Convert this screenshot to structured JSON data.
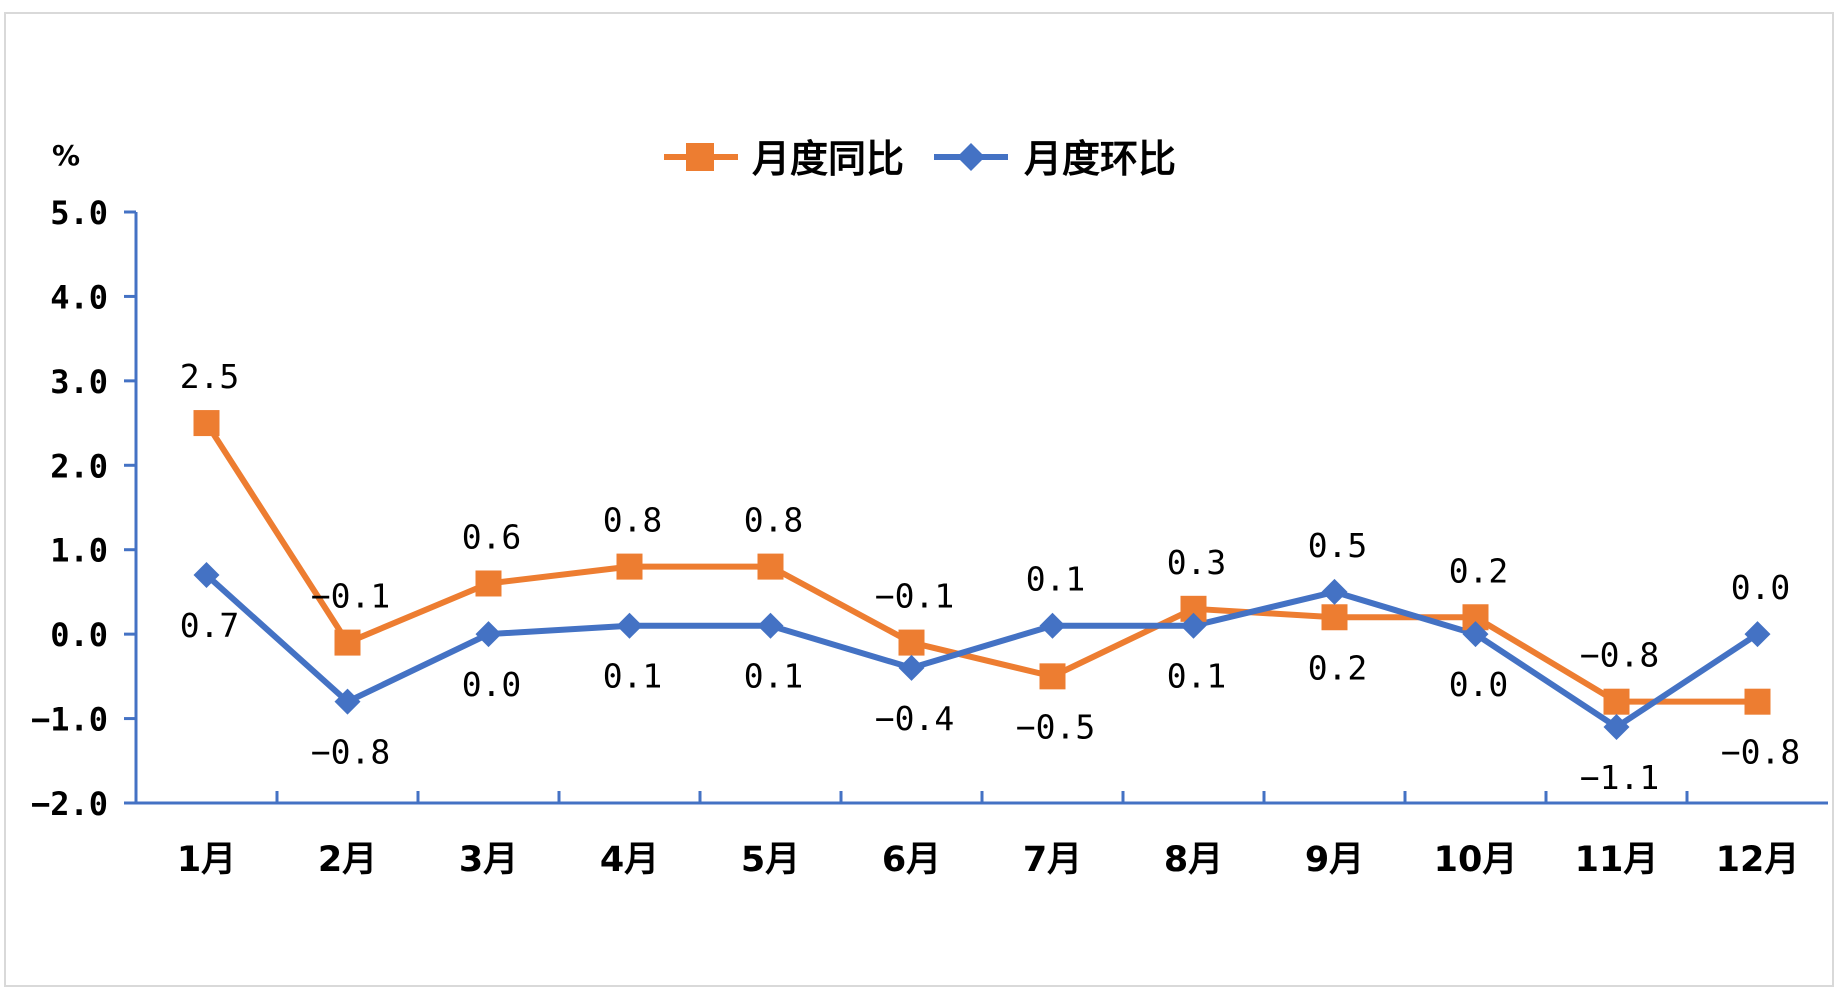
{
  "chart_data": {
    "type": "line",
    "unit_label": "%",
    "categories": [
      "1月",
      "2月",
      "3月",
      "4月",
      "5月",
      "6月",
      "7月",
      "8月",
      "9月",
      "10月",
      "11月",
      "12月"
    ],
    "series": [
      {
        "name": "月度同比",
        "color": "#ed7d31",
        "marker": "square",
        "values": [
          2.5,
          -0.1,
          0.6,
          0.8,
          0.8,
          -0.1,
          -0.5,
          0.3,
          0.2,
          0.2,
          -0.8,
          -0.8
        ],
        "labels": [
          "2.5",
          "−0.1",
          "0.6",
          "0.8",
          "0.8",
          "−0.1",
          "−0.5",
          "0.3",
          "0.2",
          "0.2",
          "−0.8",
          "−0.8"
        ]
      },
      {
        "name": "月度环比",
        "color": "#4472c4",
        "marker": "diamond",
        "values": [
          0.7,
          -0.8,
          0.0,
          0.1,
          0.1,
          -0.4,
          0.1,
          0.1,
          0.5,
          0.0,
          -1.1,
          0.0
        ],
        "labels": [
          "0.7",
          "−0.8",
          "0.0",
          "0.1",
          "0.1",
          "−0.4",
          "0.1",
          "0.1",
          "0.5",
          "0.0",
          "−1.1",
          "0.0"
        ]
      }
    ],
    "yticks": [
      "5.0",
      "4.0",
      "3.0",
      "2.0",
      "1.0",
      "0.0",
      "−1.0",
      "−2.0"
    ],
    "ylim": [
      -2.0,
      5.0
    ],
    "axis_color": "#4472c4",
    "legend_position": "top-center",
    "grid": false
  }
}
